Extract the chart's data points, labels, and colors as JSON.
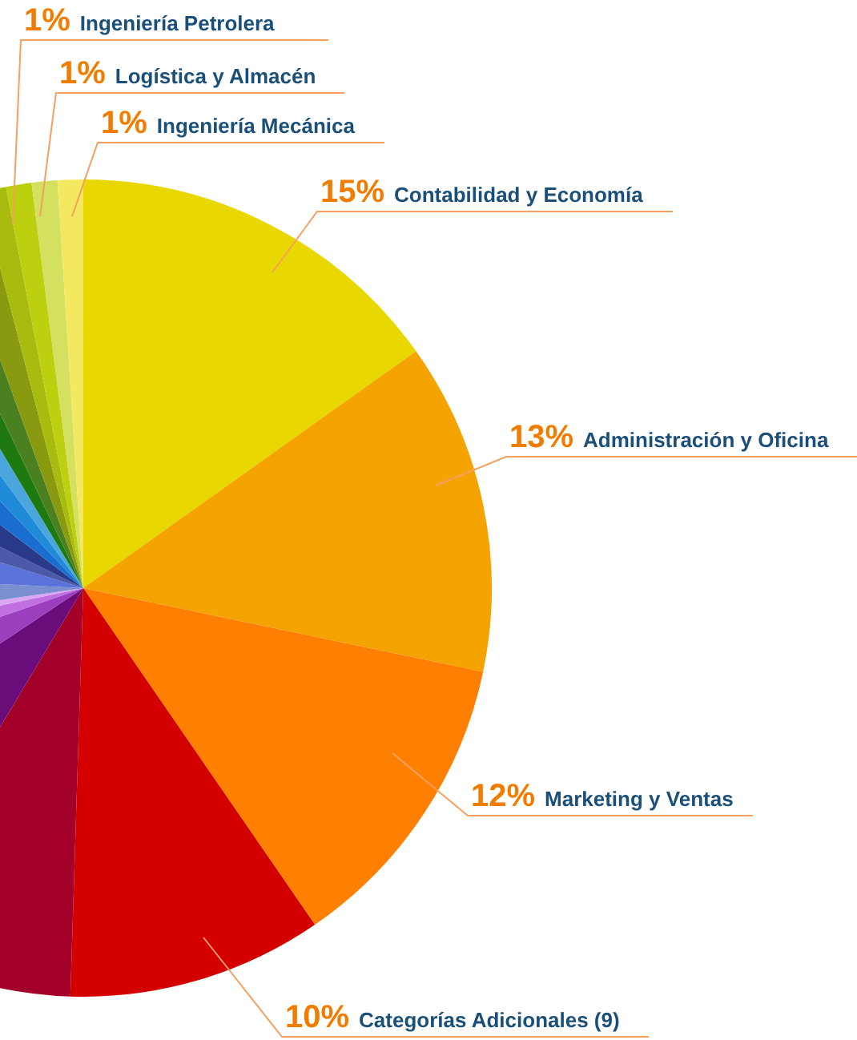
{
  "chart_data": {
    "type": "pie",
    "categories": [
      "Contabilidad y Economía",
      "Administración y Oficina",
      "Marketing y Ventas",
      "Categorías Adicionales (9)",
      null,
      null,
      null,
      null,
      null,
      null,
      null,
      null,
      null,
      null,
      null,
      null,
      null,
      null,
      null,
      null,
      "Ingeniería Petrolera",
      "Logística y Almacén",
      "Ingeniería Mecánica"
    ],
    "values": [
      15,
      13,
      12,
      10,
      8,
      7,
      4,
      2,
      1,
      3,
      4,
      2.5,
      3,
      2.5,
      2,
      1.5,
      1.5,
      1.5,
      1.5,
      1,
      1,
      1,
      1
    ],
    "colors": [
      "#e8d800",
      "#f5a300",
      "#ff8000",
      "#d40000",
      "#a3002a",
      "#6a0d7a",
      "#9b3fbf",
      "#c070e0",
      "#dca6f5",
      "#7b8fd0",
      "#5a72da",
      "#4a5aa8",
      "#2a3a8a",
      "#1a6ed0",
      "#1e8ad8",
      "#4aa6dc",
      "#1e7a10",
      "#4a8020",
      "#8a9a10",
      "#a8bc10",
      "#bcd010",
      "#d4e060",
      "#f4e860"
    ],
    "value_labels": [
      "15%",
      "13%",
      "12%",
      "10%",
      null,
      null,
      null,
      null,
      null,
      null,
      null,
      null,
      null,
      null,
      null,
      null,
      null,
      null,
      null,
      null,
      "1%",
      "1%",
      "1%"
    ]
  }
}
